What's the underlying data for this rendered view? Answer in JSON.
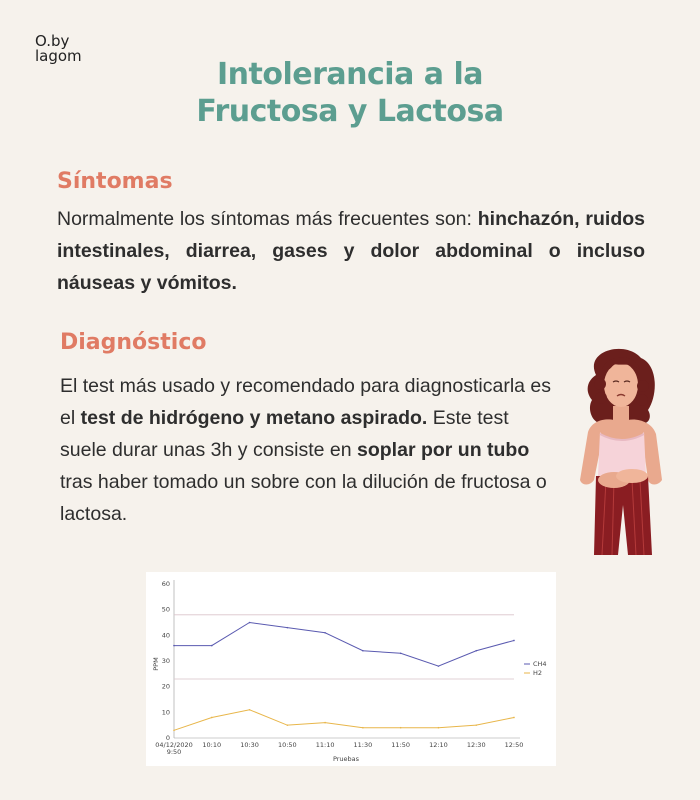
{
  "logo": {
    "line1": "O.by",
    "line2": "lagom"
  },
  "title": {
    "line1": "Intolerancia a la",
    "line2": "Fructosa y Lactosa"
  },
  "sintomas": {
    "heading": "Síntomas",
    "text_intro": "Normalmente los síntomas más frecuentes son: ",
    "text_bold": "hinchazón, ruidos intestinales, diarrea, gases y dolor abdominal o incluso náuseas y vómitos."
  },
  "diagnostico": {
    "heading": "Diagnóstico",
    "t1": "El test más usado y recomendado para diagnosticarla es el ",
    "b1": "test de hidrógeno y metano aspirado.",
    "t2": " Este test suele durar unas 3h y consiste en ",
    "b2": "soplar por un tubo",
    "t3": " tras haber tomado un sobre con la dilución de fructosa o lactosa."
  },
  "colors": {
    "accent": "#5c9e90",
    "heading": "#e07b64",
    "ch4": "#5a5ab0",
    "h2": "#e8b64a"
  },
  "chart_data": {
    "type": "line",
    "categories": [
      "04/12/2020 9:50",
      "10:10",
      "10:30",
      "10:50",
      "11:10",
      "11:30",
      "11:50",
      "12:10",
      "12:30",
      "12:50"
    ],
    "series": [
      {
        "name": "CH4",
        "values": [
          36,
          36,
          45,
          43,
          41,
          34,
          33,
          28,
          34,
          38
        ]
      },
      {
        "name": "H2",
        "values": [
          3,
          8,
          11,
          5,
          6,
          4,
          4,
          4,
          5,
          8
        ]
      }
    ],
    "title": "",
    "xlabel": "Pruebas",
    "ylabel": "PPM",
    "yticks_top": [
      30,
      40,
      50,
      60
    ],
    "yticks_bottom": [
      0,
      10,
      20
    ],
    "ylim": [
      0,
      60
    ],
    "reference_lines": [
      48,
      23
    ],
    "legend_position": "right",
    "grid": false
  }
}
